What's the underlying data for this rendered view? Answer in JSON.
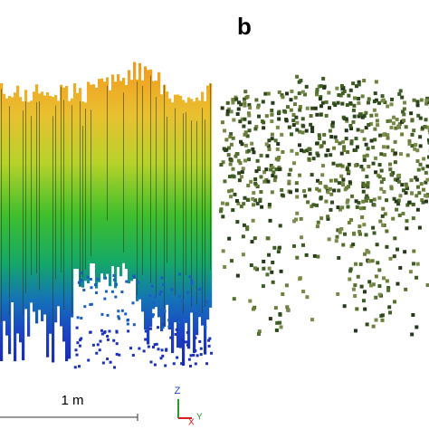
{
  "panel_label": "b",
  "scale_bar": {
    "label": "1 m"
  },
  "axes": {
    "z": "Z",
    "x": "X",
    "y": "Y"
  }
}
